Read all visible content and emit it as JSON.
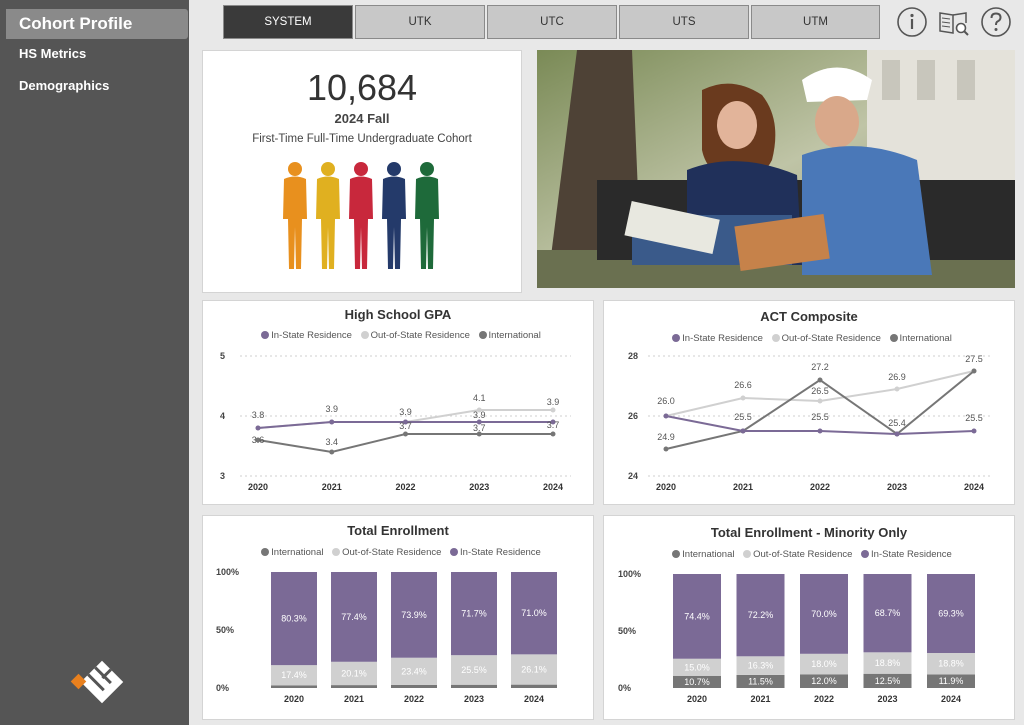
{
  "sidebar": {
    "active_item": "Cohort Profile",
    "items": [
      "HS Metrics",
      "Demographics"
    ],
    "logo_icon": "institution-logo-icon"
  },
  "tabs": [
    "SYSTEM",
    "UTK",
    "UTC",
    "UTS",
    "UTM"
  ],
  "active_tab": "SYSTEM",
  "top_icons": [
    "info-icon",
    "book-search-icon",
    "help-icon"
  ],
  "cohort": {
    "count": "10,684",
    "term": "2024 Fall",
    "description": "First-Time Full-Time Undergraduate Cohort",
    "people_colors": [
      "#e8901e",
      "#e0b020",
      "#c8283c",
      "#243a6a",
      "#1e6a3a"
    ]
  },
  "photo": {
    "description_icon": "students-photo"
  },
  "colors": {
    "in_state": "#7b6a96",
    "out_state": "#d0d0d0",
    "international": "#767676"
  },
  "gpa": {
    "title": "High School GPA",
    "legend": [
      "In-State Residence",
      "Out-of-State Residence",
      "International"
    ],
    "x": [
      "2020",
      "2021",
      "2022",
      "2023",
      "2024"
    ],
    "y_ticks": [
      "5",
      "4",
      "3"
    ],
    "ylim": [
      3,
      5
    ],
    "series": [
      {
        "name": "In-State Residence",
        "values": [
          3.8,
          3.9,
          3.9,
          3.9,
          3.9
        ]
      },
      {
        "name": "Out-of-State Residence",
        "values": [
          3.8,
          3.9,
          3.9,
          4.1,
          4.1
        ]
      },
      {
        "name": "International",
        "values": [
          3.6,
          3.4,
          3.7,
          3.7,
          3.7
        ]
      }
    ],
    "labels": [
      "3.8",
      "3.6",
      "3.9",
      "3.4",
      "3.9",
      "3.7",
      "4.1",
      "3.9",
      "3.7",
      "3.9",
      "3.7"
    ]
  },
  "act": {
    "title": "ACT Composite",
    "legend": [
      "In-State Residence",
      "Out-of-State Residence",
      "International"
    ],
    "x": [
      "2020",
      "2021",
      "2022",
      "2023",
      "2024"
    ],
    "y_ticks": [
      "28",
      "26",
      "24"
    ],
    "ylim": [
      24,
      28
    ],
    "series": [
      {
        "name": "In-State Residence",
        "values": [
          26.0,
          25.5,
          25.5,
          25.4,
          25.5
        ]
      },
      {
        "name": "Out-of-State Residence",
        "values": [
          26.0,
          26.6,
          26.5,
          26.9,
          27.5
        ]
      },
      {
        "name": "International",
        "values": [
          24.9,
          25.5,
          27.2,
          25.4,
          27.5
        ]
      }
    ],
    "labels": [
      "26.0",
      "24.9",
      "26.6",
      "25.5",
      "27.2",
      "26.5",
      "25.5",
      "26.9",
      "25.4",
      "27.5",
      "25.5"
    ]
  },
  "enrollment": {
    "title": "Total Enrollment",
    "legend": [
      "International",
      "Out-of-State Residence",
      "In-State Residence"
    ],
    "y_ticks": [
      "100%",
      "50%",
      "0%"
    ],
    "categories": [
      "2020",
      "2021",
      "2022",
      "2023",
      "2024"
    ],
    "in_state": [
      80.3,
      77.4,
      73.9,
      71.7,
      71.0
    ],
    "out_state": [
      17.4,
      20.1,
      23.4,
      25.5,
      26.1
    ],
    "international": [
      2.3,
      2.5,
      2.7,
      2.8,
      2.9
    ],
    "in_labels": [
      "80.3%",
      "77.4%",
      "73.9%",
      "71.7%",
      "71.0%"
    ],
    "out_labels": [
      "17.4%",
      "20.1%",
      "23.4%",
      "25.5%",
      "26.1%"
    ]
  },
  "minority": {
    "title": "Total Enrollment - Minority Only",
    "legend": [
      "International",
      "Out-of-State Residence",
      "In-State Residence"
    ],
    "y_ticks": [
      "100%",
      "50%",
      "0%"
    ],
    "categories": [
      "2020",
      "2021",
      "2022",
      "2023",
      "2024"
    ],
    "in_state": [
      74.4,
      72.2,
      70.0,
      68.7,
      69.3
    ],
    "out_state": [
      15.0,
      16.3,
      18.0,
      18.8,
      18.8
    ],
    "international": [
      10.7,
      11.5,
      12.0,
      12.5,
      11.9
    ],
    "in_labels": [
      "74.4%",
      "72.2%",
      "70.0%",
      "68.7%",
      "69.3%"
    ],
    "out_labels": [
      "15.0%",
      "16.3%",
      "18.0%",
      "18.8%",
      "18.8%"
    ],
    "intl_labels": [
      "10.7%",
      "11.5%",
      "12.0%",
      "12.5%",
      "11.9%"
    ]
  },
  "chart_data": [
    {
      "type": "line",
      "title": "High School GPA",
      "x": [
        "2020",
        "2021",
        "2022",
        "2023",
        "2024"
      ],
      "ylim": [
        3,
        5
      ],
      "series": [
        {
          "name": "In-State Residence",
          "values": [
            3.8,
            3.9,
            3.9,
            3.9,
            3.9
          ]
        },
        {
          "name": "Out-of-State Residence",
          "values": [
            3.8,
            3.9,
            3.9,
            4.1,
            4.1
          ]
        },
        {
          "name": "International",
          "values": [
            3.6,
            3.4,
            3.7,
            3.7,
            3.7
          ]
        }
      ]
    },
    {
      "type": "line",
      "title": "ACT Composite",
      "x": [
        "2020",
        "2021",
        "2022",
        "2023",
        "2024"
      ],
      "ylim": [
        24,
        28
      ],
      "series": [
        {
          "name": "In-State Residence",
          "values": [
            26.0,
            25.5,
            25.5,
            25.4,
            25.5
          ]
        },
        {
          "name": "Out-of-State Residence",
          "values": [
            26.0,
            26.6,
            26.5,
            26.9,
            27.5
          ]
        },
        {
          "name": "International",
          "values": [
            24.9,
            25.5,
            27.2,
            25.4,
            27.5
          ]
        }
      ]
    },
    {
      "type": "bar",
      "title": "Total Enrollment",
      "categories": [
        "2020",
        "2021",
        "2022",
        "2023",
        "2024"
      ],
      "series": [
        {
          "name": "International",
          "values": [
            2.3,
            2.5,
            2.7,
            2.8,
            2.9
          ]
        },
        {
          "name": "Out-of-State Residence",
          "values": [
            17.4,
            20.1,
            23.4,
            25.5,
            26.1
          ]
        },
        {
          "name": "In-State Residence",
          "values": [
            80.3,
            77.4,
            73.9,
            71.7,
            71.0
          ]
        }
      ]
    },
    {
      "type": "bar",
      "title": "Total Enrollment - Minority Only",
      "categories": [
        "2020",
        "2021",
        "2022",
        "2023",
        "2024"
      ],
      "series": [
        {
          "name": "International",
          "values": [
            10.7,
            11.5,
            12.0,
            12.5,
            11.9
          ]
        },
        {
          "name": "Out-of-State Residence",
          "values": [
            15.0,
            16.3,
            18.0,
            18.8,
            18.8
          ]
        },
        {
          "name": "In-State Residence",
          "values": [
            74.4,
            72.2,
            70.0,
            68.7,
            69.3
          ]
        }
      ]
    }
  ]
}
